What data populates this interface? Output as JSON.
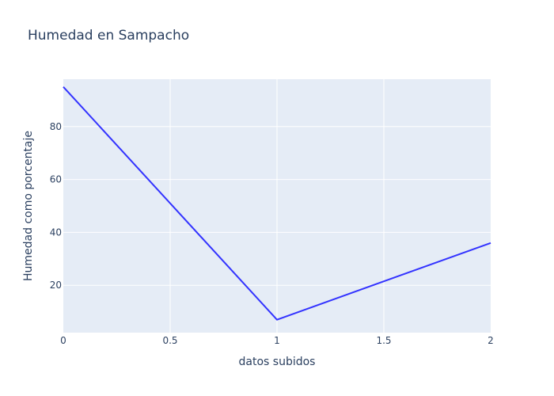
{
  "chart_data": {
    "type": "line",
    "title": "Humedad en Sampacho",
    "xlabel": "datos subidos",
    "ylabel": "Humedad como porcentaje",
    "x": [
      0,
      1,
      2
    ],
    "series": [
      {
        "values": [
          95,
          7,
          36
        ],
        "color": "#3333ff"
      }
    ],
    "xlim": [
      0,
      2
    ],
    "ylim": [
      2.11,
      97.89
    ],
    "xticks": [
      0,
      0.5,
      1,
      1.5,
      2
    ],
    "xtick_labels": [
      "0",
      "0.5",
      "1",
      "1.5",
      "2"
    ],
    "yticks": [
      20,
      40,
      60,
      80
    ],
    "ytick_labels": [
      "20",
      "40",
      "60",
      "80"
    ],
    "grid": true,
    "legend": "none",
    "colors": {
      "plot_bg": "#e5ecf6",
      "grid": "#ffffff",
      "text": "#2a3f5f"
    }
  }
}
